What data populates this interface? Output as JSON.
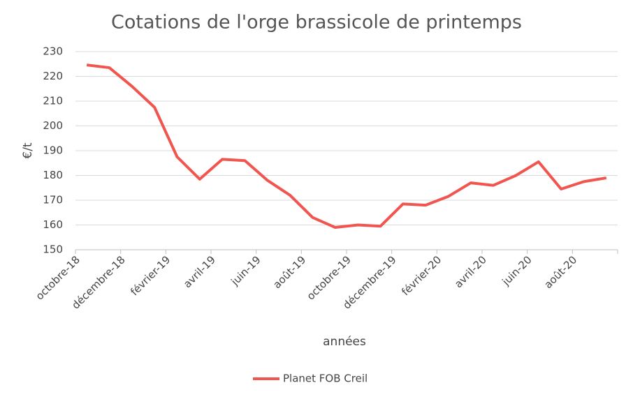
{
  "chart_data": {
    "type": "line",
    "title": "Cotations de l'orge brassicole de printemps",
    "x_label": "années",
    "y_label": "€/t",
    "categories": [
      "octobre-18",
      null,
      "décembre-18",
      null,
      "février-19",
      null,
      "avril-19",
      null,
      "juin-19",
      null,
      "août-19",
      null,
      "octobre-19",
      null,
      "décembre-19",
      null,
      "février-20",
      null,
      "avril-20",
      null,
      "juin-20",
      null,
      "août-20",
      null
    ],
    "series": [
      {
        "name": "Planet FOB Creil",
        "color": "#f0554f",
        "values": [
          224.6,
          223.5,
          216,
          207.5,
          187.5,
          178.5,
          186.5,
          186,
          178,
          172,
          163,
          159,
          160,
          159.5,
          168.5,
          168,
          171.5,
          177,
          176,
          180,
          185.5,
          174.5,
          177.5,
          179
        ]
      }
    ],
    "ylim": [
      150,
      230
    ],
    "yticks": [
      150,
      160,
      170,
      180,
      190,
      200,
      210,
      220,
      230
    ],
    "grid": true
  }
}
